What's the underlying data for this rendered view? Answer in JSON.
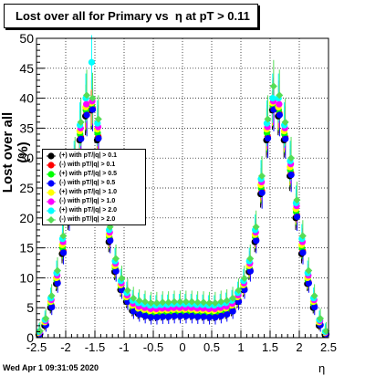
{
  "title": "Lost over all for Primary vs  η at pT > 0.11",
  "timestamp": "Wed Apr  1 09:31:05 2020",
  "chart_data": {
    "type": "scatter",
    "title": "Lost over all for Primary vs  η at pT > 0.11",
    "xlabel": "η",
    "ylabel": "Lost over all (%)",
    "xlim": [
      -2.5,
      2.5
    ],
    "ylim": [
      0,
      50
    ],
    "x_ticks": [
      "-2.5",
      "-2",
      "-1.5",
      "-1",
      "-0.5",
      "0",
      "0.5",
      "1",
      "1.5",
      "2",
      "2.5"
    ],
    "y_ticks": [
      "0",
      "5",
      "10",
      "15",
      "20",
      "25",
      "30",
      "35",
      "40",
      "45",
      "50"
    ],
    "grid": true,
    "legend_position": "left",
    "x": [
      -2.45,
      -2.35,
      -2.25,
      -2.15,
      -2.05,
      -1.95,
      -1.85,
      -1.75,
      -1.65,
      -1.55,
      -1.45,
      -1.35,
      -1.25,
      -1.15,
      -1.05,
      -0.95,
      -0.85,
      -0.75,
      -0.65,
      -0.55,
      -0.45,
      -0.35,
      -0.25,
      -0.15,
      -0.05,
      0.05,
      0.15,
      0.25,
      0.35,
      0.45,
      0.55,
      0.65,
      0.75,
      0.85,
      0.95,
      1.05,
      1.15,
      1.25,
      1.35,
      1.45,
      1.55,
      1.65,
      1.75,
      1.85,
      1.95,
      2.05,
      2.15,
      2.25,
      2.35,
      2.45
    ],
    "series": [
      {
        "name": "(+) with pT/|q| > 0.1",
        "color": "#000000",
        "marker": "circle",
        "values": [
          0.5,
          2,
          5,
          9,
          14,
          20,
          27,
          33,
          37,
          38,
          33,
          24,
          16,
          11,
          8,
          6,
          4.5,
          4,
          3.8,
          3.6,
          3.6,
          3.7,
          3.7,
          3.8,
          3.8,
          3.8,
          3.8,
          3.7,
          3.7,
          3.6,
          3.6,
          3.8,
          4,
          4.5,
          6,
          8,
          11,
          16,
          24,
          33,
          38,
          37,
          33,
          27,
          20,
          14,
          9,
          5,
          2,
          0.5
        ]
      },
      {
        "name": "(-) with pT/|q| > 0.1",
        "color": "#ff0000",
        "marker": "circle",
        "values": [
          0.6,
          2.2,
          5.3,
          9.3,
          14.5,
          20.5,
          27.5,
          33.5,
          37.5,
          38.4,
          33.6,
          24.5,
          16.4,
          11.3,
          8.2,
          6.2,
          4.7,
          4.2,
          4,
          3.8,
          3.8,
          3.9,
          3.9,
          4,
          4,
          4,
          4,
          3.9,
          3.9,
          3.8,
          3.8,
          4,
          4.2,
          4.7,
          6.2,
          8.2,
          11.3,
          16.4,
          24.5,
          33.6,
          38.4,
          37.5,
          33.5,
          27.5,
          20.5,
          14.5,
          9.3,
          5.3,
          2.2,
          0.6
        ]
      },
      {
        "name": "(+) with pT/|q| > 0.5",
        "color": "#00ff00",
        "marker": "circle",
        "values": [
          0.7,
          2.4,
          5.6,
          9.6,
          15,
          21,
          28,
          34,
          38,
          38.8,
          34.2,
          25,
          16.8,
          11.6,
          8.5,
          6.5,
          5,
          4.5,
          4.3,
          4.1,
          4.1,
          4.2,
          4.2,
          4.3,
          4.3,
          4.3,
          4.3,
          4.2,
          4.2,
          4.1,
          4.1,
          4.3,
          4.5,
          5,
          6.5,
          8.5,
          11.6,
          16.8,
          25,
          34.2,
          38.8,
          38,
          34,
          28,
          21,
          15,
          9.6,
          5.6,
          2.4,
          0.7
        ]
      },
      {
        "name": "(-) with pT/|q| > 0.5",
        "color": "#0000ff",
        "marker": "circle",
        "values": [
          0.6,
          2.1,
          5.1,
          9.1,
          14.2,
          20.2,
          27.2,
          33.2,
          37.2,
          38.1,
          33.3,
          24.2,
          16.2,
          11.1,
          8,
          6,
          4.4,
          3.9,
          3.6,
          3.4,
          3.4,
          3.5,
          3.5,
          3.6,
          3.6,
          3.6,
          3.6,
          3.5,
          3.5,
          3.4,
          3.4,
          3.6,
          3.9,
          4.4,
          6,
          8,
          11.1,
          16.2,
          24.2,
          33.3,
          38.1,
          37.2,
          33.2,
          27.2,
          20.2,
          14.2,
          9.1,
          5.1,
          2.1,
          0.6
        ]
      },
      {
        "name": "(+) with pT/|q| > 1.0",
        "color": "#ffff00",
        "marker": "circle",
        "values": [
          0.8,
          2.6,
          6,
          10,
          15.5,
          21.5,
          28.5,
          34.5,
          38.5,
          39.2,
          34.8,
          25.5,
          17.2,
          12,
          8.8,
          6.8,
          5.4,
          4.9,
          4.7,
          4.5,
          4.5,
          4.6,
          4.6,
          4.7,
          4.7,
          4.7,
          4.7,
          4.6,
          4.6,
          4.5,
          4.5,
          4.7,
          4.9,
          5.4,
          6.8,
          8.8,
          12,
          17.2,
          25.5,
          34.8,
          39.2,
          38.5,
          34.5,
          28.5,
          21.5,
          15.5,
          10,
          6,
          2.6,
          0.8
        ]
      },
      {
        "name": "(-) with pT/|q| > 1.0",
        "color": "#ff00ff",
        "marker": "circle",
        "values": [
          0.9,
          2.8,
          6.3,
          10.4,
          16,
          22,
          29,
          35,
          39,
          39.5,
          35.2,
          26,
          17.6,
          12.4,
          9.1,
          7.1,
          5.7,
          5.2,
          5,
          4.8,
          4.8,
          4.9,
          4.9,
          5,
          5,
          5,
          5,
          4.9,
          4.9,
          4.8,
          4.8,
          5,
          5.2,
          5.7,
          7.1,
          9.1,
          12.4,
          17.6,
          26,
          35.2,
          39.5,
          39,
          35,
          29,
          22,
          16,
          10.4,
          6.3,
          2.8,
          0.9
        ]
      },
      {
        "name": "(+) with pT/|q| > 2.0",
        "color": "#00ffff",
        "marker": "circle",
        "values": [
          1,
          3,
          6.6,
          10.8,
          16.5,
          22.5,
          29.5,
          35.5,
          40,
          46,
          35.8,
          26.5,
          18,
          12.8,
          9.5,
          7.5,
          6.2,
          5.8,
          5.6,
          5.4,
          5.4,
          5.5,
          5.5,
          5.6,
          5.6,
          5.6,
          5.6,
          5.5,
          5.5,
          5.4,
          5.4,
          5.6,
          5.8,
          6.2,
          7.5,
          9.5,
          12.8,
          18,
          26.5,
          35.8,
          40,
          40,
          35.5,
          29.5,
          22.5,
          16.5,
          10.8,
          6.6,
          3,
          1
        ]
      },
      {
        "name": "(-) with pT/|q| > 2.0",
        "color": "#55dd55",
        "marker": "diamond",
        "values": [
          1.1,
          3.2,
          7,
          11.2,
          17,
          23,
          30,
          36,
          40.5,
          40,
          36.5,
          27,
          18.5,
          13.2,
          9.9,
          7.9,
          6.6,
          6.2,
          6,
          5.8,
          5.8,
          5.9,
          5.9,
          6,
          6,
          6,
          6,
          5.9,
          5.9,
          5.8,
          5.8,
          6,
          6.2,
          6.6,
          7.9,
          9.9,
          13.2,
          18.5,
          27,
          36.5,
          42,
          40.5,
          36,
          30,
          23,
          17,
          11.2,
          7,
          3.2,
          1.1
        ]
      }
    ]
  }
}
